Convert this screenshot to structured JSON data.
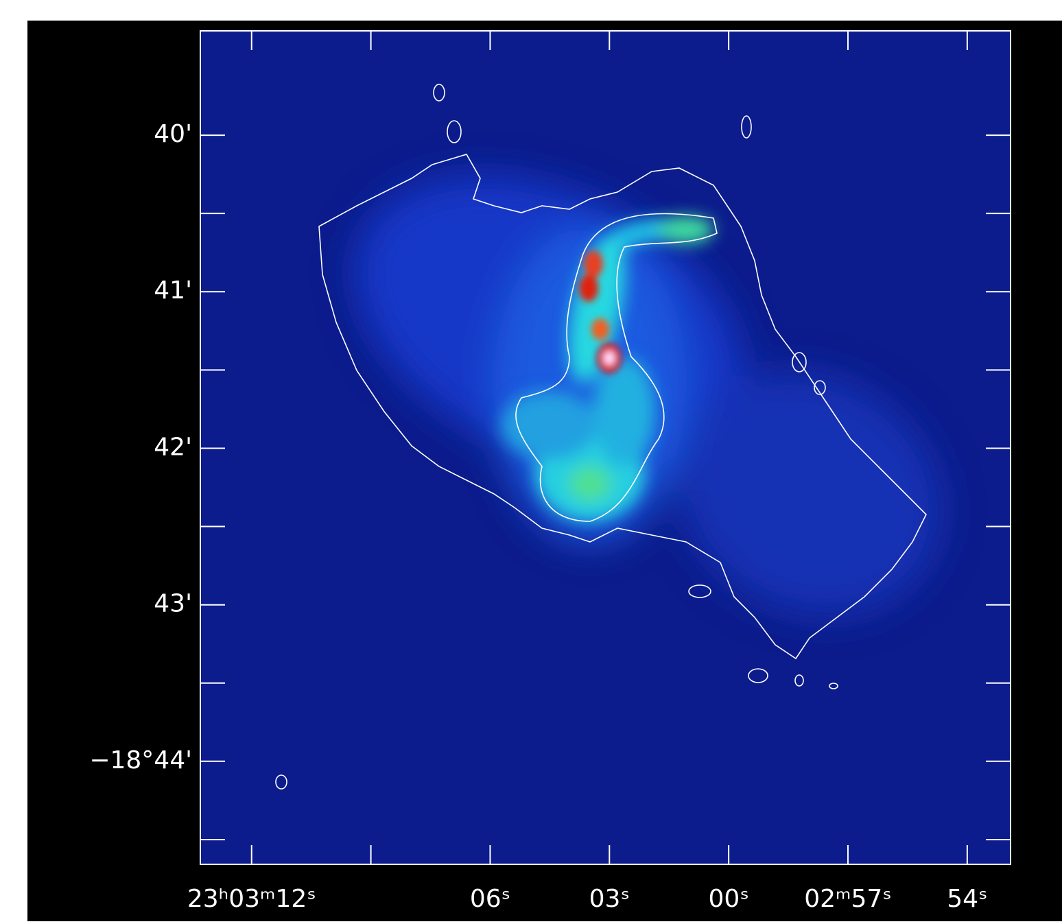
{
  "chart_data": {
    "type": "image",
    "xlim": [
      82993.29,
      82972.91
    ],
    "xticks": [
      {
        "value": 82992,
        "label": "23ʰ03ᵐ12ˢ"
      },
      {
        "value": 82989,
        "label": null
      },
      {
        "value": 82986,
        "label": "06ˢ"
      },
      {
        "value": 82983,
        "label": "03ˢ"
      },
      {
        "value": 82980,
        "label": "00ˢ"
      },
      {
        "value": 82977,
        "label": "02ᵐ57ˢ"
      },
      {
        "value": 82974,
        "label": "54ˢ"
      }
    ],
    "ylim": [
      -18.7443,
      -18.65556
    ],
    "yticks": [
      {
        "value": -18.66667,
        "label": "40'"
      },
      {
        "value": -18.68333,
        "label": "41'"
      },
      {
        "value": -18.7,
        "label": "42'"
      },
      {
        "value": -18.71667,
        "label": "43'"
      },
      {
        "value": -18.73333,
        "label": "−18°44'"
      }
    ],
    "yminorticks": [
      -18.675,
      -18.69167,
      -18.70833,
      -18.725,
      -18.74167
    ]
  }
}
